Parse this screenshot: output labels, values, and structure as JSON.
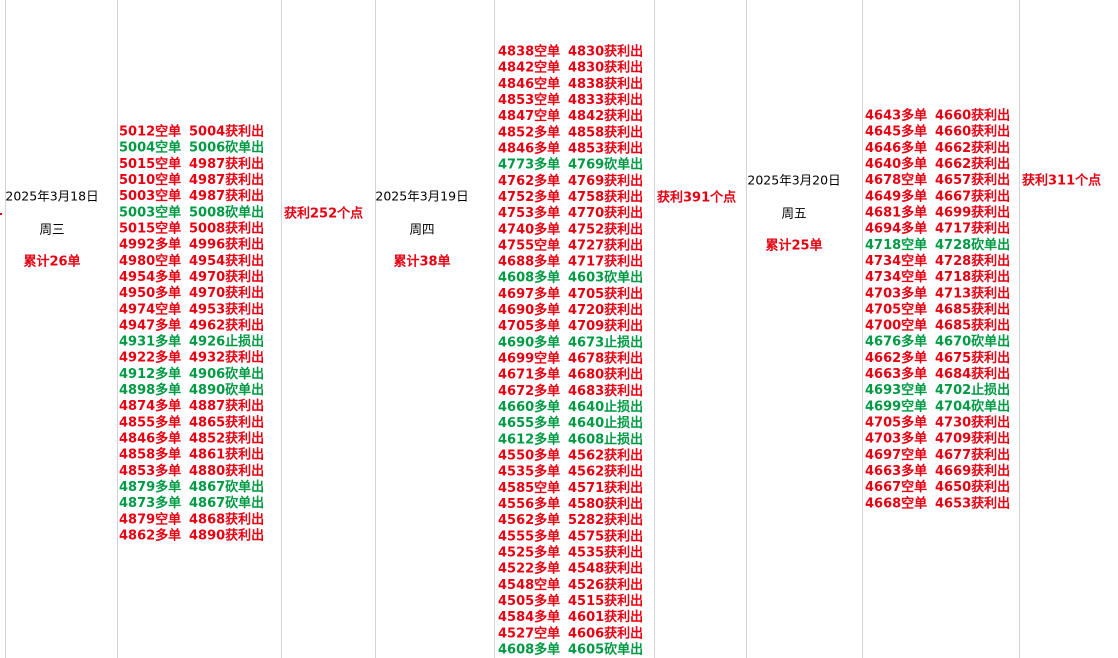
{
  "days": [
    {
      "date": "2025年3月18日",
      "weekday": "周三",
      "total": "累计26单",
      "profit": "获利252个点",
      "trades": [
        {
          "entry": "5012空单",
          "exit": "5004获利出",
          "color": "#e60012"
        },
        {
          "entry": "5004空单",
          "exit": "5006砍单出",
          "color": "#009944"
        },
        {
          "entry": "5015空单",
          "exit": "4987获利出",
          "color": "#e60012"
        },
        {
          "entry": "5010空单",
          "exit": "4987获利出",
          "color": "#e60012"
        },
        {
          "entry": "5003空单",
          "exit": "4987获利出",
          "color": "#e60012"
        },
        {
          "entry": "5003空单",
          "exit": "5008砍单出",
          "color": "#009944"
        },
        {
          "entry": "5015空单",
          "exit": "5008获利出",
          "color": "#e60012"
        },
        {
          "entry": "4992多单",
          "exit": "4996获利出",
          "color": "#e60012"
        },
        {
          "entry": "4980空单",
          "exit": "4954获利出",
          "color": "#e60012"
        },
        {
          "entry": "4954多单",
          "exit": "4970获利出",
          "color": "#e60012"
        },
        {
          "entry": "4950多单",
          "exit": "4970获利出",
          "color": "#e60012"
        },
        {
          "entry": "4974空单",
          "exit": "4953获利出",
          "color": "#e60012"
        },
        {
          "entry": "4947多单",
          "exit": "4962获利出",
          "color": "#e60012"
        },
        {
          "entry": "4931多单",
          "exit": "4926止损出",
          "color": "#009944"
        },
        {
          "entry": "4922多单",
          "exit": "4932获利出",
          "color": "#e60012"
        },
        {
          "entry": "4912多单",
          "exit": "4906砍单出",
          "color": "#009944"
        },
        {
          "entry": "4898多单",
          "exit": "4890砍单出",
          "color": "#009944"
        },
        {
          "entry": "4874多单",
          "exit": "4887获利出",
          "color": "#e60012"
        },
        {
          "entry": "4855多单",
          "exit": "4865获利出",
          "color": "#e60012"
        },
        {
          "entry": "4846多单",
          "exit": "4852获利出",
          "color": "#e60012"
        },
        {
          "entry": "4858多单",
          "exit": "4861获利出",
          "color": "#e60012"
        },
        {
          "entry": "4853多单",
          "exit": "4880获利出",
          "color": "#e60012"
        },
        {
          "entry": "4879多单",
          "exit": "4867砍单出",
          "color": "#009944"
        },
        {
          "entry": "4873多单",
          "exit": "4867砍单出",
          "color": "#009944"
        },
        {
          "entry": "4879空单",
          "exit": "4868获利出",
          "color": "#e60012"
        },
        {
          "entry": "4862多单",
          "exit": "4890获利出",
          "color": "#e60012"
        }
      ]
    },
    {
      "date": "2025年3月19日",
      "weekday": "周四",
      "total": "累计38单",
      "profit": "获利391个点",
      "trades": [
        {
          "entry": "4838空单",
          "exit": "4830获利出",
          "color": "#e60012"
        },
        {
          "entry": "4842空单",
          "exit": "4830获利出",
          "color": "#e60012"
        },
        {
          "entry": "4846空单",
          "exit": "4838获利出",
          "color": "#e60012"
        },
        {
          "entry": "4853空单",
          "exit": "4833获利出",
          "color": "#e60012"
        },
        {
          "entry": "4847空单",
          "exit": "4842获利出",
          "color": "#e60012"
        },
        {
          "entry": "4852多单",
          "exit": "4858获利出",
          "color": "#e60012"
        },
        {
          "entry": "4846多单",
          "exit": "4853获利出",
          "color": "#e60012"
        },
        {
          "entry": "4773多单",
          "exit": "4769砍单出",
          "color": "#009944"
        },
        {
          "entry": "4762多单",
          "exit": "4769获利出",
          "color": "#e60012"
        },
        {
          "entry": "4752多单",
          "exit": "4758获利出",
          "color": "#e60012"
        },
        {
          "entry": "4753多单",
          "exit": "4770获利出",
          "color": "#e60012"
        },
        {
          "entry": "4740多单",
          "exit": "4752获利出",
          "color": "#e60012"
        },
        {
          "entry": "4755空单",
          "exit": "4727获利出",
          "color": "#e60012"
        },
        {
          "entry": "4688多单",
          "exit": "4717获利出",
          "color": "#e60012"
        },
        {
          "entry": "4608多单",
          "exit": "4603砍单出",
          "color": "#009944"
        },
        {
          "entry": "4697多单",
          "exit": "4705获利出",
          "color": "#e60012"
        },
        {
          "entry": "4690多单",
          "exit": "4720获利出",
          "color": "#e60012"
        },
        {
          "entry": "4705多单",
          "exit": "4709获利出",
          "color": "#e60012"
        },
        {
          "entry": "4690多单",
          "exit": "4673止损出",
          "color": "#009944"
        },
        {
          "entry": "4699空单",
          "exit": "4678获利出",
          "color": "#e60012"
        },
        {
          "entry": "4671多单",
          "exit": "4680获利出",
          "color": "#e60012"
        },
        {
          "entry": "4672多单",
          "exit": "4683获利出",
          "color": "#e60012"
        },
        {
          "entry": "4660多单",
          "exit": "4640止损出",
          "color": "#009944"
        },
        {
          "entry": "4655多单",
          "exit": "4640止损出",
          "color": "#009944"
        },
        {
          "entry": "4612多单",
          "exit": "4608止损出",
          "color": "#009944"
        },
        {
          "entry": "4550多单",
          "exit": "4562获利出",
          "color": "#e60012"
        },
        {
          "entry": "4535多单",
          "exit": "4562获利出",
          "color": "#e60012"
        },
        {
          "entry": "4585空单",
          "exit": "4571获利出",
          "color": "#e60012"
        },
        {
          "entry": "4556多单",
          "exit": "4580获利出",
          "color": "#e60012"
        },
        {
          "entry": "4562多单",
          "exit": "5282获利出",
          "color": "#e60012"
        },
        {
          "entry": "4555多单",
          "exit": "4575获利出",
          "color": "#e60012"
        },
        {
          "entry": "4525多单",
          "exit": "4535获利出",
          "color": "#e60012"
        },
        {
          "entry": "4522多单",
          "exit": "4548获利出",
          "color": "#e60012"
        },
        {
          "entry": "4548空单",
          "exit": "4526获利出",
          "color": "#e60012"
        },
        {
          "entry": "4505多单",
          "exit": "4515获利出",
          "color": "#e60012"
        },
        {
          "entry": "4584多单",
          "exit": "4601获利出",
          "color": "#e60012"
        },
        {
          "entry": "4527空单",
          "exit": "4606获利出",
          "color": "#e60012"
        },
        {
          "entry": "4608多单",
          "exit": "4605砍单出",
          "color": "#009944"
        }
      ]
    },
    {
      "date": "2025年3月20日",
      "weekday": "周五",
      "total": "累计25单",
      "profit": "获利311个点",
      "trades": [
        {
          "entry": "4643多单",
          "exit": "4660获利出",
          "color": "#e60012"
        },
        {
          "entry": "4645多单",
          "exit": "4660获利出",
          "color": "#e60012"
        },
        {
          "entry": "4646多单",
          "exit": "4662获利出",
          "color": "#e60012"
        },
        {
          "entry": "4640多单",
          "exit": "4662获利出",
          "color": "#e60012"
        },
        {
          "entry": "4678空单",
          "exit": "4657获利出",
          "color": "#e60012"
        },
        {
          "entry": "4649多单",
          "exit": "4667获利出",
          "color": "#e60012"
        },
        {
          "entry": "4681多单",
          "exit": "4699获利出",
          "color": "#e60012"
        },
        {
          "entry": "4694多单",
          "exit": "4717获利出",
          "color": "#e60012"
        },
        {
          "entry": "4718空单",
          "exit": "4728砍单出",
          "color": "#009944"
        },
        {
          "entry": "4734空单",
          "exit": "4728获利出",
          "color": "#e60012"
        },
        {
          "entry": "4734空单",
          "exit": "4718获利出",
          "color": "#e60012"
        },
        {
          "entry": "4703多单",
          "exit": "4713获利出",
          "color": "#e60012"
        },
        {
          "entry": "4705空单",
          "exit": "4685获利出",
          "color": "#e60012"
        },
        {
          "entry": "4700空单",
          "exit": "4685获利出",
          "color": "#e60012"
        },
        {
          "entry": "4676多单",
          "exit": "4670砍单出",
          "color": "#009944"
        },
        {
          "entry": "4662多单",
          "exit": "4675获利出",
          "color": "#e60012"
        },
        {
          "entry": "4663多单",
          "exit": "4684获利出",
          "color": "#e60012"
        },
        {
          "entry": "4693空单",
          "exit": "4702止损出",
          "color": "#009944"
        },
        {
          "entry": "4699空单",
          "exit": "4704砍单出",
          "color": "#009944"
        },
        {
          "entry": "4705多单",
          "exit": "4730获利出",
          "color": "#e60012"
        },
        {
          "entry": "4703多单",
          "exit": "4709获利出",
          "color": "#e60012"
        },
        {
          "entry": "4697空单",
          "exit": "4677获利出",
          "color": "#e60012"
        },
        {
          "entry": "4663多单",
          "exit": "4669获利出",
          "color": "#e60012"
        },
        {
          "entry": "4667空单",
          "exit": "4650获利出",
          "color": "#e60012"
        },
        {
          "entry": "4668空单",
          "exit": "4653获利出",
          "color": "#e60012"
        }
      ]
    }
  ]
}
